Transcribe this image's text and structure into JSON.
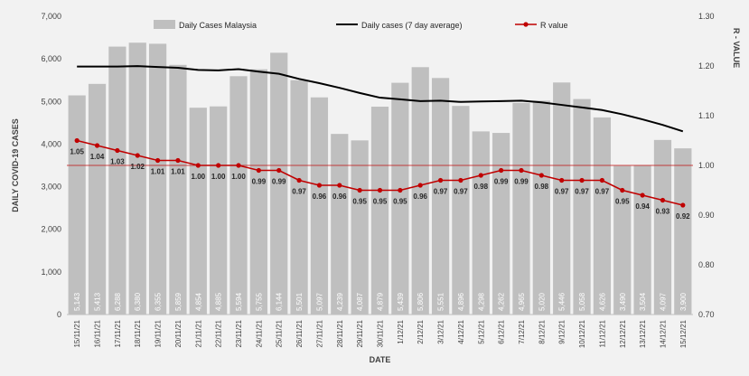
{
  "chart_data": {
    "type": "bar",
    "title": "",
    "xlabel": "DATE",
    "ylabel": "DAILY COVID-19 CASES",
    "y2label": "R - VALUE",
    "ylim": [
      0,
      7000
    ],
    "y2lim": [
      0.7,
      1.3
    ],
    "yticks": [
      "0",
      "1,000",
      "2,000",
      "3,000",
      "4,000",
      "5,000",
      "6,000",
      "7,000"
    ],
    "y2ticks": [
      "0.70",
      "0.80",
      "0.90",
      "1.00",
      "1.10",
      "1.20",
      "1.30"
    ],
    "legend": [
      "Daily Cases Malaysia",
      "Daily cases (7 day average)",
      "R value"
    ],
    "legend_position": "top",
    "grid": false,
    "reference_line_r": 1.0,
    "colors": {
      "bars": "#bfbfbf",
      "average": "#000000",
      "r_value": "#c00000",
      "bar_labels": "#ffffff"
    },
    "categories": [
      "15/11/21",
      "16/11/21",
      "17/11/21",
      "18/11/21",
      "19/11/21",
      "20/11/21",
      "21/11/21",
      "22/11/21",
      "23/11/21",
      "24/11/21",
      "25/11/21",
      "26/11/21",
      "27/11/21",
      "28/11/21",
      "29/11/21",
      "30/11/21",
      "1/12/21",
      "2/12/21",
      "3/12/21",
      "4/12/21",
      "5/12/21",
      "6/12/21",
      "7/12/21",
      "8/12/21",
      "9/12/21",
      "10/12/21",
      "11/12/21",
      "12/12/21",
      "13/12/21",
      "14/12/21",
      "15/12/21"
    ],
    "series": [
      {
        "name": "Daily Cases Malaysia",
        "type": "bar",
        "axis": "left",
        "values": [
          5143,
          5413,
          6288,
          6380,
          6355,
          5859,
          4854,
          4885,
          5594,
          5755,
          6144,
          5501,
          5097,
          4239,
          4087,
          4879,
          5439,
          5806,
          5551,
          4896,
          4298,
          4262,
          4965,
          5020,
          5446,
          5058,
          4626,
          3490,
          3504,
          4097,
          3900
        ],
        "labels": [
          "5,143",
          "5,413",
          "6,288",
          "6,380",
          "6,355",
          "5,859",
          "4,854",
          "4,885",
          "5,594",
          "5,755",
          "6,144",
          "5,501",
          "5,097",
          "4,239",
          "4,087",
          "4,879",
          "5,439",
          "5,806",
          "5,551",
          "4,896",
          "4,298",
          "4,262",
          "4,965",
          "5,020",
          "5,446",
          "5,058",
          "4,626",
          "3,490",
          "3,504",
          "4,097",
          "3,900"
        ]
      },
      {
        "name": "Daily cases (7 day average)",
        "type": "line",
        "axis": "left",
        "values": [
          5820,
          5820,
          5820,
          5830,
          5810,
          5790,
          5740,
          5730,
          5760,
          5700,
          5650,
          5530,
          5430,
          5320,
          5200,
          5090,
          5050,
          5010,
          5020,
          4990,
          5000,
          5010,
          5020,
          4980,
          4920,
          4860,
          4800,
          4700,
          4580,
          4450,
          4300
        ]
      },
      {
        "name": "R value",
        "type": "line",
        "axis": "right",
        "values": [
          1.05,
          1.04,
          1.03,
          1.02,
          1.01,
          1.01,
          1.0,
          1.0,
          1.0,
          0.99,
          0.99,
          0.97,
          0.96,
          0.96,
          0.95,
          0.95,
          0.95,
          0.96,
          0.97,
          0.97,
          0.98,
          0.99,
          0.99,
          0.98,
          0.97,
          0.97,
          0.97,
          0.95,
          0.94,
          0.93,
          0.92
        ],
        "labels": [
          "1.05",
          "1.04",
          "1.03",
          "1.02",
          "1.01",
          "1.01",
          "1.00",
          "1.00",
          "1.00",
          "0.99",
          "0.99",
          "0.97",
          "0.96",
          "0.96",
          "0.95",
          "0.95",
          "0.95",
          "0.96",
          "0.97",
          "0.97",
          "0.98",
          "0.99",
          "0.99",
          "0.98",
          "0.97",
          "0.97",
          "0.97",
          "0.95",
          "0.94",
          "0.93",
          "0.92"
        ]
      }
    ]
  }
}
